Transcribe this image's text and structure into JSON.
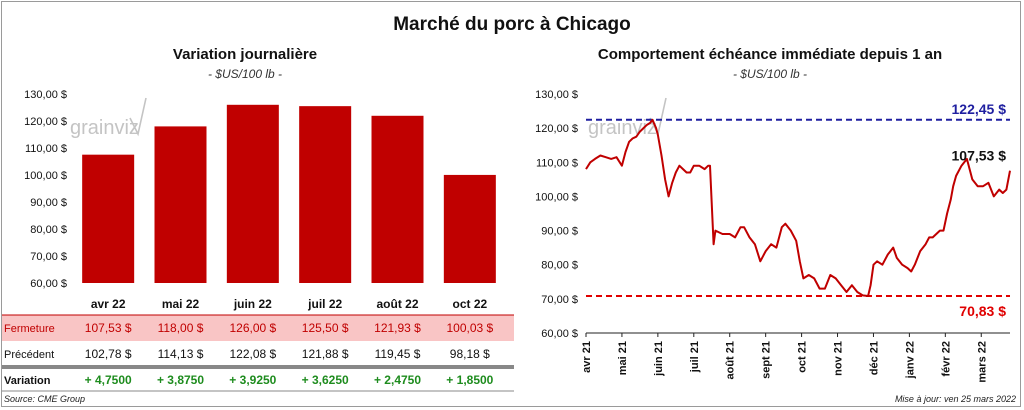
{
  "title": "Marché du porc à Chicago",
  "left_panel": {
    "title": "Variation  journalière",
    "unit": "- $US/100 lb -"
  },
  "right_panel": {
    "title": "Comportement  échéance immédiate depuis 1 an",
    "unit": "- $US/100 lb -"
  },
  "watermark": "grainviz",
  "table": {
    "rows": [
      {
        "label": "Fermeture",
        "values": [
          "107,53  $",
          "118,00  $",
          "126,00  $",
          "125,50  $",
          "121,93  $",
          "100,03  $"
        ]
      },
      {
        "label": "Précédent",
        "values": [
          "102,78  $",
          "114,13  $",
          "122,08  $",
          "121,88  $",
          "119,45  $",
          "98,18  $"
        ]
      },
      {
        "label": "Variation",
        "values": [
          "+ 4,7500",
          "+ 3,8750",
          "+ 3,9250",
          "+ 3,6250",
          "+ 2,4750",
          "+ 1,8500"
        ]
      }
    ]
  },
  "footer": {
    "source": "Source: CME Group",
    "update": "Mise à jour: ven 25 mars 2022"
  },
  "colors": {
    "bar": "#c00000",
    "line": "#c00000",
    "high_line": "#1f1fa0",
    "low_line": "#e00000",
    "positive": "#1e8c1e",
    "fermeture_bg": "#f9c5c5"
  },
  "chart_data": [
    {
      "type": "bar",
      "title": "Variation  journalière",
      "ylabel": "$US/100 lb",
      "categories": [
        "avr 22",
        "mai 22",
        "juin 22",
        "juil 22",
        "août 22",
        "oct 22"
      ],
      "values": [
        107.53,
        118.0,
        126.0,
        125.5,
        121.93,
        100.03
      ],
      "ylim": [
        60,
        130
      ],
      "yticks": [
        "60,00 $",
        "70,00 $",
        "80,00 $",
        "90,00 $",
        "100,00 $",
        "110,00 $",
        "120,00 $",
        "130,00 $"
      ]
    },
    {
      "type": "line",
      "title": "Comportement  échéance immédiate depuis 1 an",
      "ylabel": "$US/100 lb",
      "ylim": [
        60,
        130
      ],
      "yticks": [
        "60,00 $",
        "70,00 $",
        "80,00 $",
        "90,00 $",
        "100,00 $",
        "110,00 $",
        "120,00 $",
        "130,00 $"
      ],
      "xticks": [
        "avr 21",
        "mai 21",
        "juin 21",
        "juil 21",
        "août 21",
        "sept 21",
        "oct 21",
        "nov 21",
        "déc 21",
        "janv 22",
        "févr 22",
        "mars 22"
      ],
      "x_range_months": [
        0,
        11.8
      ],
      "high": {
        "value": 122.45,
        "label": "122,45 $"
      },
      "low": {
        "value": 70.83,
        "label": "70,83 $"
      },
      "last": {
        "value": 107.53,
        "label": "107,53 $"
      },
      "series": [
        {
          "name": "Échéance immédiate",
          "x": [
            0,
            0.12,
            0.25,
            0.4,
            0.55,
            0.7,
            0.85,
            1.0,
            1.1,
            1.2,
            1.3,
            1.4,
            1.5,
            1.6,
            1.7,
            1.78,
            1.85,
            1.95,
            2.0,
            2.1,
            2.2,
            2.3,
            2.4,
            2.5,
            2.6,
            2.7,
            2.8,
            2.9,
            3.0,
            3.05,
            3.15,
            3.3,
            3.4,
            3.45,
            3.55,
            3.6,
            3.8,
            4.0,
            4.15,
            4.3,
            4.4,
            4.55,
            4.7,
            4.85,
            5.0,
            5.15,
            5.3,
            5.45,
            5.55,
            5.7,
            5.85,
            5.95,
            6.05,
            6.2,
            6.35,
            6.5,
            6.65,
            6.8,
            6.95,
            7.1,
            7.25,
            7.4,
            7.55,
            7.7,
            7.85,
            7.92,
            8.0,
            8.1,
            8.25,
            8.4,
            8.55,
            8.65,
            8.8,
            8.95,
            9.05,
            9.15,
            9.3,
            9.45,
            9.55,
            9.65,
            9.75,
            9.85,
            9.95,
            10.05,
            10.15,
            10.22,
            10.3,
            10.45,
            10.6,
            10.75,
            10.9,
            11.05,
            11.2,
            11.35,
            11.5,
            11.6,
            11.7,
            11.8
          ],
          "y": [
            108,
            110,
            111,
            112,
            111.5,
            111,
            111.5,
            109,
            113,
            116,
            117,
            117.5,
            119,
            120,
            121,
            121.5,
            122.45,
            120,
            118,
            112,
            105,
            100,
            104,
            107,
            109,
            108,
            107,
            107,
            109,
            109,
            109,
            108,
            109,
            109,
            86,
            90,
            89,
            89,
            88,
            91,
            91,
            88,
            86,
            81,
            84,
            86,
            85,
            91,
            92,
            90,
            87,
            81,
            76,
            77,
            76,
            73,
            73,
            77,
            76,
            74,
            72,
            74,
            72,
            71,
            70.83,
            74,
            80,
            81,
            80,
            83,
            85,
            82,
            80,
            79,
            78,
            80,
            84,
            86,
            88,
            88,
            89,
            90,
            90,
            95,
            99,
            103,
            106,
            109,
            111,
            105,
            103,
            103,
            104,
            100,
            102,
            101,
            102,
            107.53
          ]
        }
      ]
    }
  ]
}
